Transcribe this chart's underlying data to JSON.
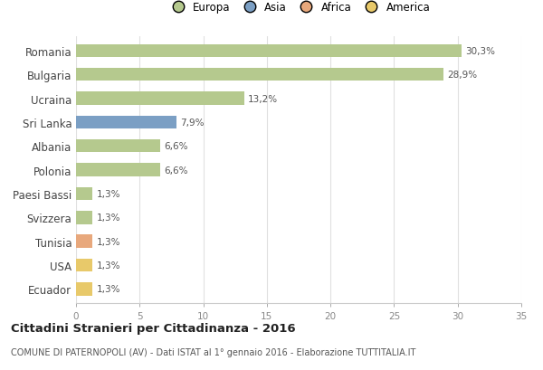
{
  "categories": [
    "Romania",
    "Bulgaria",
    "Ucraina",
    "Sri Lanka",
    "Albania",
    "Polonia",
    "Paesi Bassi",
    "Svizzera",
    "Tunisia",
    "USA",
    "Ecuador"
  ],
  "values": [
    30.3,
    28.9,
    13.2,
    7.9,
    6.6,
    6.6,
    1.3,
    1.3,
    1.3,
    1.3,
    1.3
  ],
  "labels": [
    "30,3%",
    "28,9%",
    "13,2%",
    "7,9%",
    "6,6%",
    "6,6%",
    "1,3%",
    "1,3%",
    "1,3%",
    "1,3%",
    "1,3%"
  ],
  "colors": [
    "#b5c98e",
    "#b5c98e",
    "#b5c98e",
    "#7b9fc4",
    "#b5c98e",
    "#b5c98e",
    "#b5c98e",
    "#b5c98e",
    "#e8a87c",
    "#e8c96a",
    "#e8c96a"
  ],
  "legend_labels": [
    "Europa",
    "Asia",
    "Africa",
    "America"
  ],
  "legend_colors": [
    "#b5c98e",
    "#7b9fc4",
    "#e8a87c",
    "#e8c96a"
  ],
  "title": "Cittadini Stranieri per Cittadinanza - 2016",
  "subtitle": "COMUNE DI PATERNOPOLI (AV) - Dati ISTAT al 1° gennaio 2016 - Elaborazione TUTTITALIA.IT",
  "xlim": [
    0,
    35
  ],
  "xticks": [
    0,
    5,
    10,
    15,
    20,
    25,
    30,
    35
  ],
  "background_color": "#ffffff",
  "grid_color": "#e0e0e0",
  "bar_height": 0.55
}
